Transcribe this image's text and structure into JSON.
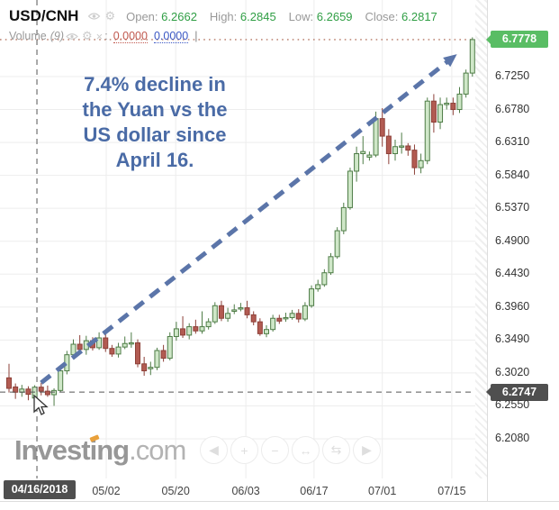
{
  "header": {
    "symbol": "USD/CNH",
    "ohlc": [
      {
        "label": "Open:",
        "value": "6.2662"
      },
      {
        "label": "High:",
        "value": "6.2845"
      },
      {
        "label": "Low:",
        "value": "6.2659"
      },
      {
        "label": "Close:",
        "value": "6.2817"
      }
    ],
    "indicator": {
      "name": "Volume",
      "period": "(9)",
      "colon": ":",
      "value1": "0.0000",
      "value2": "0.0000",
      "bar": "|"
    },
    "icons": [
      "eye-icon",
      "gear-icon",
      "close-icon"
    ]
  },
  "annotation": {
    "text": "7.4% decline in\nthe Yuan vs the\nUS dollar since\nApril 16.",
    "color": "#4a6ba6"
  },
  "badges": {
    "current_price": "6.7778",
    "crosshair_price": "6.2747",
    "crosshair_date": "04/16/2018"
  },
  "logo": {
    "brand_prefix": "Invest",
    "brand_accent_letter": "i",
    "brand_suffix": "ng",
    "tld": ".com"
  },
  "toolbar": [
    {
      "name": "pan-left-button",
      "glyph": "◀"
    },
    {
      "name": "zoom-in-button",
      "glyph": "+"
    },
    {
      "name": "zoom-out-button",
      "glyph": "−"
    },
    {
      "name": "zoom-x-expand-button",
      "glyph": "↔"
    },
    {
      "name": "zoom-x-reset-button",
      "glyph": "⇆"
    },
    {
      "name": "pan-right-button",
      "glyph": "▶"
    }
  ],
  "chart_data": {
    "type": "candlestick",
    "title": "USD/CNH",
    "hovered_ohlc": {
      "date": "04/16/2018",
      "open": 6.2662,
      "high": 6.2845,
      "low": 6.2659,
      "close": 6.2817
    },
    "current_price": 6.7778,
    "crosshair": {
      "price": 6.2747,
      "date": "04/16/2018",
      "index": 4.34
    },
    "y_top": 6.8343,
    "y_bottom": 6.1514,
    "x0": 10,
    "dx": 7.15,
    "y_ticks": [
      "6.7250",
      "6.6780",
      "6.6310",
      "6.5840",
      "6.5370",
      "6.4900",
      "6.4430",
      "6.3960",
      "6.3490",
      "6.3020",
      "6.2550",
      "6.2080"
    ],
    "x_ticks": [
      {
        "label": "05/02",
        "index": 15.1
      },
      {
        "label": "05/20",
        "index": 25.9
      },
      {
        "label": "06/03",
        "index": 36.8
      },
      {
        "label": "06/17",
        "index": 47.4
      },
      {
        "label": "07/01",
        "index": 58.0
      },
      {
        "label": "07/15",
        "index": 68.8
      }
    ],
    "trend_line": {
      "from_index": 5.0,
      "from_price": 6.288,
      "to_index": 69.6,
      "to_price": 6.757,
      "color": "#5b75a9",
      "style": "dashed-arrow"
    },
    "up_fill": "#cfe7c8",
    "up_border": "#4e7c46",
    "down_fill": "#b25b52",
    "down_border": "#8d4038",
    "grid_color": "#ededed",
    "crosshair_color": "#555555",
    "price_line_color": "#c08b7b",
    "candles": [
      [
        6.295,
        6.315,
        6.274,
        6.28
      ],
      [
        6.282,
        6.287,
        6.265,
        6.2745
      ],
      [
        6.2745,
        6.285,
        6.268,
        6.279
      ],
      [
        6.279,
        6.283,
        6.263,
        6.2715
      ],
      [
        6.2662,
        6.2845,
        6.2659,
        6.2817
      ],
      [
        6.2817,
        6.288,
        6.27,
        6.276
      ],
      [
        6.276,
        6.284,
        6.268,
        6.271
      ],
      [
        6.271,
        6.28,
        6.255,
        6.277
      ],
      [
        6.277,
        6.31,
        6.2745,
        6.305
      ],
      [
        6.305,
        6.3335,
        6.3,
        6.328
      ],
      [
        6.328,
        6.35,
        6.325,
        6.343
      ],
      [
        6.343,
        6.356,
        6.33,
        6.3355
      ],
      [
        6.3355,
        6.355,
        6.328,
        6.348
      ],
      [
        6.348,
        6.353,
        6.334,
        6.338
      ],
      [
        6.338,
        6.36,
        6.335,
        6.352
      ],
      [
        6.352,
        6.357,
        6.332,
        6.337
      ],
      [
        6.337,
        6.342,
        6.325,
        6.329
      ],
      [
        6.329,
        6.345,
        6.324,
        6.339
      ],
      [
        6.339,
        6.354,
        6.336,
        6.344
      ],
      [
        6.344,
        6.36,
        6.338,
        6.345
      ],
      [
        6.345,
        6.35,
        6.31,
        6.315
      ],
      [
        6.315,
        6.325,
        6.298,
        6.305
      ],
      [
        6.308,
        6.318,
        6.299,
        6.31
      ],
      [
        6.31,
        6.338,
        6.306,
        6.334
      ],
      [
        6.334,
        6.342,
        6.318,
        6.323
      ],
      [
        6.323,
        6.36,
        6.32,
        6.354
      ],
      [
        6.354,
        6.375,
        6.348,
        6.365
      ],
      [
        6.365,
        6.383,
        6.352,
        6.356
      ],
      [
        6.356,
        6.373,
        6.35,
        6.368
      ],
      [
        6.368,
        6.378,
        6.358,
        6.362
      ],
      [
        6.362,
        6.39,
        6.358,
        6.368
      ],
      [
        6.368,
        6.38,
        6.364,
        6.375
      ],
      [
        6.375,
        6.403,
        6.372,
        6.398
      ],
      [
        6.398,
        6.405,
        6.376,
        6.38
      ],
      [
        6.38,
        6.395,
        6.375,
        6.387
      ],
      [
        6.39,
        6.4,
        6.386,
        6.392
      ],
      [
        6.395,
        6.402,
        6.39,
        6.395
      ],
      [
        6.395,
        6.405,
        6.38,
        6.385
      ],
      [
        6.385,
        6.39,
        6.37,
        6.375
      ],
      [
        6.375,
        6.38,
        6.355,
        6.358
      ],
      [
        6.358,
        6.37,
        6.353,
        6.364
      ],
      [
        6.364,
        6.385,
        6.361,
        6.38
      ],
      [
        6.38,
        6.385,
        6.372,
        6.376
      ],
      [
        6.38,
        6.388,
        6.375,
        6.381
      ],
      [
        6.381,
        6.392,
        6.378,
        6.387
      ],
      [
        6.387,
        6.393,
        6.374,
        6.379
      ],
      [
        6.379,
        6.403,
        6.376,
        6.398
      ],
      [
        6.398,
        6.427,
        6.395,
        6.422
      ],
      [
        6.422,
        6.435,
        6.418,
        6.428
      ],
      [
        6.428,
        6.45,
        6.425,
        6.445
      ],
      [
        6.445,
        6.473,
        6.442,
        6.468
      ],
      [
        6.468,
        6.51,
        6.465,
        6.505
      ],
      [
        6.505,
        6.545,
        6.5,
        6.538
      ],
      [
        6.538,
        6.595,
        6.535,
        6.59
      ],
      [
        6.59,
        6.625,
        6.575,
        6.615
      ],
      [
        6.615,
        6.64,
        6.6,
        6.618
      ],
      [
        6.61,
        6.618,
        6.605,
        6.613
      ],
      [
        6.613,
        6.675,
        6.61,
        6.665
      ],
      [
        6.665,
        6.68,
        6.625,
        6.64
      ],
      [
        6.64,
        6.65,
        6.6,
        6.615
      ],
      [
        6.615,
        6.635,
        6.605,
        6.625
      ],
      [
        6.625,
        6.645,
        6.615,
        6.626
      ],
      [
        6.626,
        6.63,
        6.612,
        6.62
      ],
      [
        6.62,
        6.628,
        6.585,
        6.595
      ],
      [
        6.595,
        6.615,
        6.587,
        6.605
      ],
      [
        6.605,
        6.695,
        6.6,
        6.69
      ],
      [
        6.69,
        6.7,
        6.645,
        6.66
      ],
      [
        6.66,
        6.695,
        6.65,
        6.685
      ],
      [
        6.685,
        6.695,
        6.678,
        6.687
      ],
      [
        6.687,
        6.695,
        6.67,
        6.678
      ],
      [
        6.678,
        6.71,
        6.673,
        6.7
      ],
      [
        6.7,
        6.735,
        6.695,
        6.73
      ],
      [
        6.73,
        6.781,
        6.725,
        6.7778
      ]
    ]
  }
}
